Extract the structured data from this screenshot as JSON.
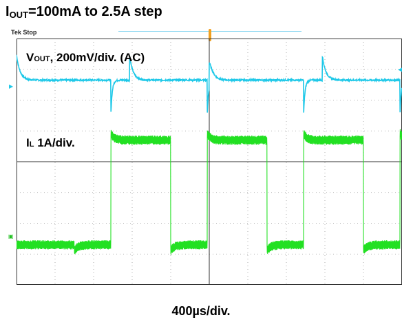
{
  "title": {
    "main": "I",
    "sub": "OUT",
    "rest": "=100mA to 2.5A step"
  },
  "scope_status": "Tek Stop",
  "labels": {
    "vout": {
      "main": "V",
      "sub": "OUT",
      "rest": ", 200mV/div. (AC)"
    },
    "il": {
      "main": "I",
      "sub": "L",
      "rest": " 1A/div."
    },
    "time": "400µs/div."
  },
  "colors": {
    "vout": "#1ec8e8",
    "il": "#22e022",
    "grid": "#9a9a9a",
    "frame": "#333333"
  },
  "icons": {
    "ch1_marker": "arrow-right-icon",
    "ch4_marker": "channel-marker-icon",
    "trigger": "trigger-marker-icon"
  },
  "chart_data": {
    "type": "line",
    "x_unit": "div",
    "x_range": [
      0,
      10
    ],
    "divisions": {
      "x": 10,
      "y": 8
    },
    "grid": true,
    "series": [
      {
        "id": "vout",
        "unit": "div",
        "baseline": 1.35,
        "description_values": {
          "overshoot_on_step_down_peak": 0.82,
          "undershoot_on_step_up_peak": -1.05
        },
        "step_down_times": [
          0.0,
          2.93,
          5.0,
          7.93
        ],
        "step_up_times": [
          2.45,
          4.95,
          7.45,
          9.95
        ]
      },
      {
        "id": "il",
        "unit": "div",
        "low_level": 6.7,
        "high_level": 3.3,
        "ripple": 0.3,
        "rise_times": [
          2.45,
          4.95,
          7.45,
          9.95
        ],
        "fall_times": [
          1.5,
          4.0,
          6.5,
          9.0
        ]
      }
    ]
  }
}
